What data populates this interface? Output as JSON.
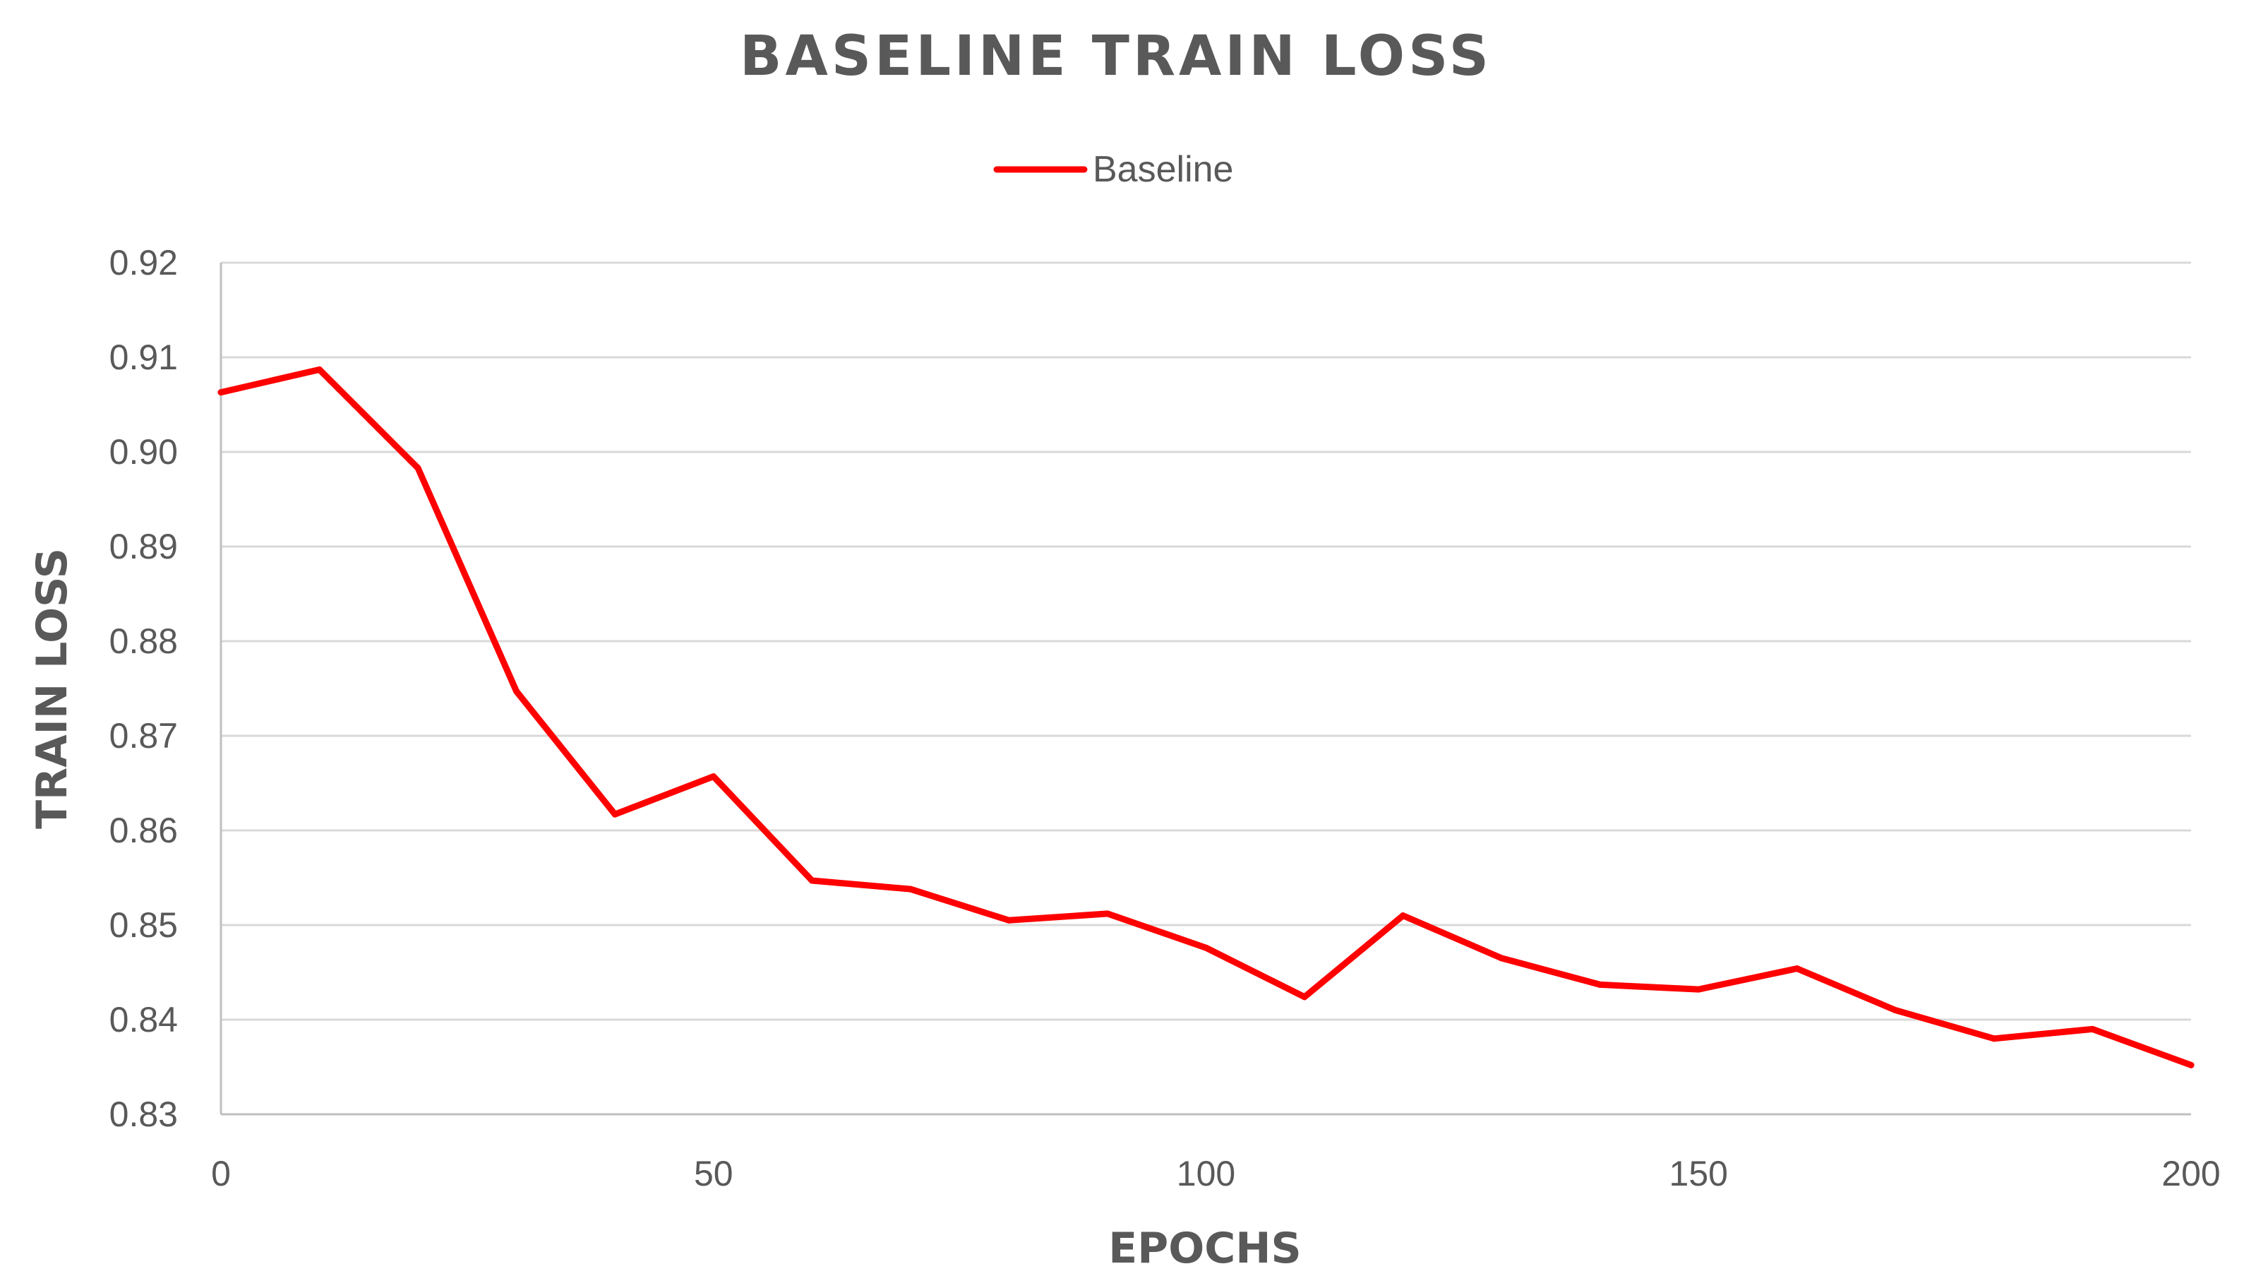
{
  "chart_data": {
    "type": "line",
    "title": "BASELINE TRAIN LOSS",
    "xlabel": "EPOCHS",
    "ylabel": "TRAIN LOSS",
    "xlim": [
      0,
      200
    ],
    "ylim": [
      0.83,
      0.92
    ],
    "x_ticks": [
      0,
      50,
      100,
      150,
      200
    ],
    "x_tick_labels": [
      "0",
      "50",
      "100",
      "150",
      "200"
    ],
    "y_ticks": [
      0.83,
      0.84,
      0.85,
      0.86,
      0.87,
      0.88,
      0.89,
      0.9,
      0.91,
      0.92
    ],
    "y_tick_labels": [
      "0.83",
      "0.84",
      "0.85",
      "0.86",
      "0.87",
      "0.88",
      "0.89",
      "0.90",
      "0.91",
      "0.92"
    ],
    "grid": "horizontal",
    "legend_position": "top-center",
    "x": [
      0,
      10,
      20,
      30,
      40,
      50,
      60,
      70,
      80,
      90,
      100,
      110,
      120,
      130,
      140,
      150,
      160,
      170,
      180,
      190,
      200
    ],
    "series": [
      {
        "name": "Baseline",
        "color": "#ff0000",
        "values": [
          0.9063,
          0.9087,
          0.8983,
          0.8747,
          0.8617,
          0.8657,
          0.8547,
          0.8538,
          0.8505,
          0.8512,
          0.8476,
          0.8424,
          0.851,
          0.8465,
          0.8437,
          0.8432,
          0.8454,
          0.841,
          0.838,
          0.839,
          0.8352
        ]
      }
    ],
    "colors": {
      "text": "#595959",
      "grid": "#d9d9d9",
      "axis": "#bfbfbf"
    }
  }
}
